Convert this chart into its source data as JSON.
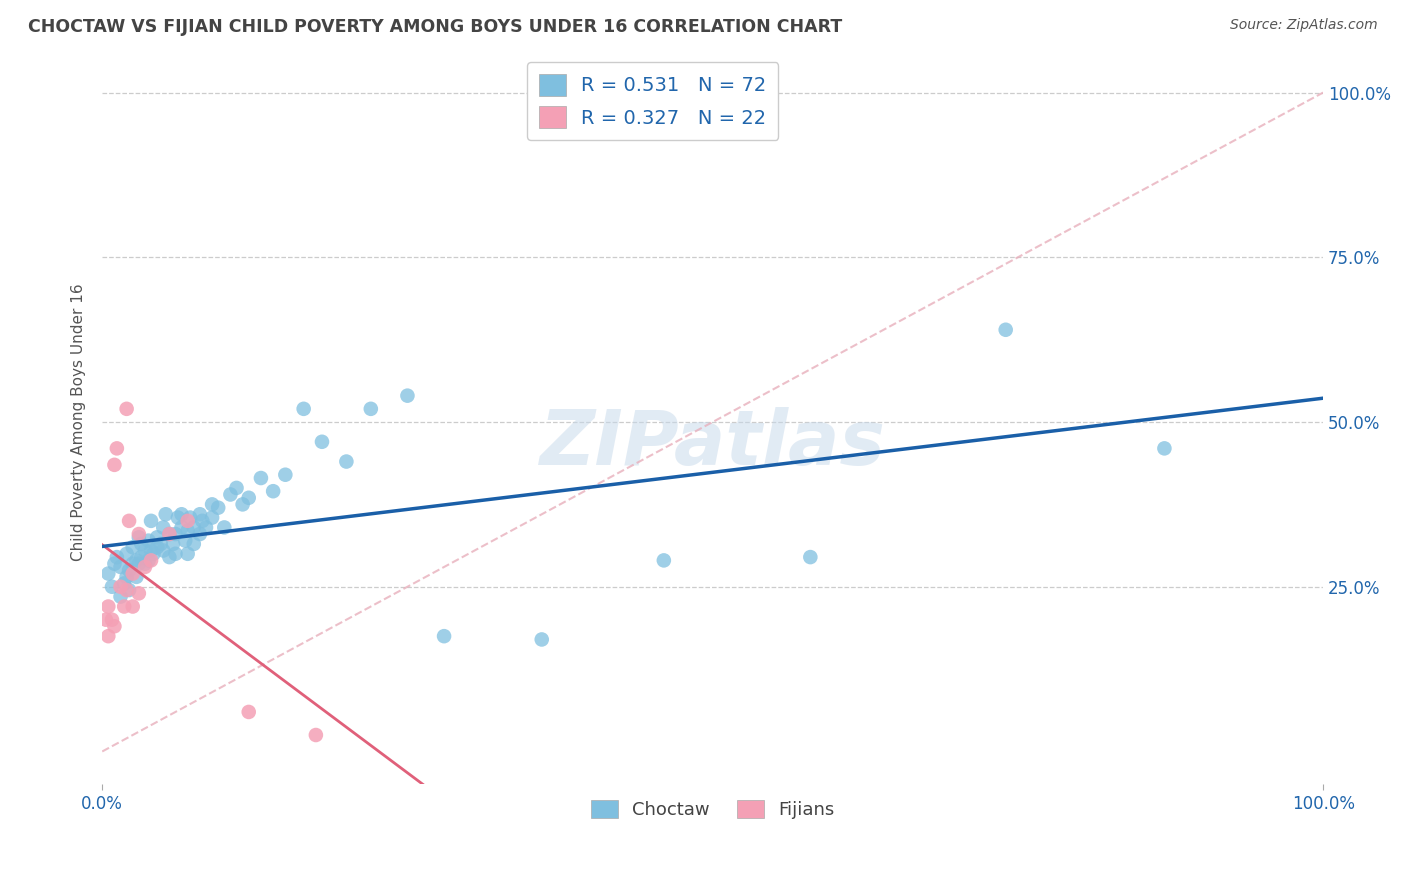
{
  "title": "CHOCTAW VS FIJIAN CHILD POVERTY AMONG BOYS UNDER 16 CORRELATION CHART",
  "source": "Source: ZipAtlas.com",
  "ylabel": "Child Poverty Among Boys Under 16",
  "watermark": "ZIPatlas",
  "choctaw_color": "#7fbfdf",
  "fijian_color": "#f4a0b5",
  "blue_line_color": "#1a5fa8",
  "fijian_line_color": "#e0607a",
  "diagonal_line_color": "#e8b0bc",
  "R_choctaw": 0.531,
  "N_choctaw": 72,
  "R_fijian": 0.327,
  "N_fijian": 22,
  "choctaw_x": [
    0.005,
    0.008,
    0.01,
    0.012,
    0.015,
    0.015,
    0.018,
    0.02,
    0.02,
    0.022,
    0.022,
    0.025,
    0.025,
    0.028,
    0.028,
    0.03,
    0.03,
    0.032,
    0.032,
    0.035,
    0.035,
    0.038,
    0.038,
    0.04,
    0.04,
    0.042,
    0.045,
    0.045,
    0.048,
    0.05,
    0.05,
    0.052,
    0.055,
    0.055,
    0.058,
    0.06,
    0.06,
    0.062,
    0.065,
    0.065,
    0.068,
    0.07,
    0.07,
    0.072,
    0.075,
    0.075,
    0.08,
    0.08,
    0.082,
    0.085,
    0.09,
    0.09,
    0.095,
    0.1,
    0.105,
    0.11,
    0.115,
    0.12,
    0.13,
    0.14,
    0.15,
    0.165,
    0.18,
    0.2,
    0.22,
    0.25,
    0.28,
    0.36,
    0.46,
    0.58,
    0.74,
    0.87
  ],
  "choctaw_y": [
    0.27,
    0.25,
    0.285,
    0.295,
    0.235,
    0.28,
    0.255,
    0.265,
    0.3,
    0.245,
    0.275,
    0.285,
    0.31,
    0.265,
    0.29,
    0.285,
    0.325,
    0.295,
    0.315,
    0.285,
    0.305,
    0.29,
    0.32,
    0.305,
    0.35,
    0.3,
    0.325,
    0.31,
    0.315,
    0.305,
    0.34,
    0.36,
    0.295,
    0.33,
    0.315,
    0.3,
    0.33,
    0.355,
    0.34,
    0.36,
    0.32,
    0.3,
    0.335,
    0.355,
    0.315,
    0.34,
    0.33,
    0.36,
    0.35,
    0.34,
    0.355,
    0.375,
    0.37,
    0.34,
    0.39,
    0.4,
    0.375,
    0.385,
    0.415,
    0.395,
    0.42,
    0.52,
    0.47,
    0.44,
    0.52,
    0.54,
    0.175,
    0.17,
    0.29,
    0.295,
    0.64,
    0.46
  ],
  "fijian_x": [
    0.003,
    0.005,
    0.005,
    0.008,
    0.01,
    0.01,
    0.012,
    0.015,
    0.018,
    0.02,
    0.02,
    0.022,
    0.025,
    0.025,
    0.03,
    0.03,
    0.035,
    0.04,
    0.055,
    0.07,
    0.12,
    0.175
  ],
  "fijian_y": [
    0.2,
    0.22,
    0.175,
    0.2,
    0.435,
    0.19,
    0.46,
    0.25,
    0.22,
    0.245,
    0.52,
    0.35,
    0.22,
    0.27,
    0.33,
    0.24,
    0.28,
    0.29,
    0.33,
    0.35,
    0.06,
    0.025
  ],
  "xlim": [
    0,
    1.0
  ],
  "ylim": [
    -0.05,
    1.05
  ],
  "xtick_positions": [
    0,
    1.0
  ],
  "xtick_labels": [
    "0.0%",
    "100.0%"
  ],
  "ytick_vals": [
    0.25,
    0.5,
    0.75,
    1.0
  ],
  "ytick_labels": [
    "25.0%",
    "50.0%",
    "75.0%",
    "100.0%"
  ],
  "grid_color": "#cccccc",
  "bg_color": "#ffffff",
  "text_color": "#2166ac",
  "title_color": "#444444",
  "legend_label1": "Choctaw",
  "legend_label2": "Fijians",
  "marker_size": 110
}
